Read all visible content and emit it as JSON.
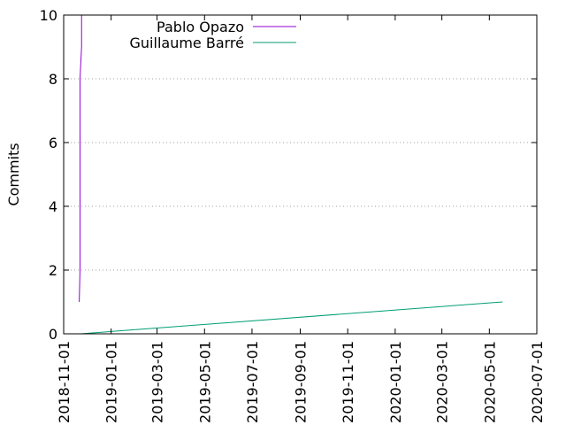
{
  "chart_data": {
    "type": "line",
    "title": "",
    "xlabel": "",
    "ylabel": "Commits",
    "x_type": "date",
    "xlim": [
      "2018-11-01",
      "2020-07-01"
    ],
    "ylim": [
      0,
      10
    ],
    "x_ticks": [
      "2018-11-01",
      "2019-01-01",
      "2019-03-01",
      "2019-05-01",
      "2019-07-01",
      "2019-09-01",
      "2019-11-01",
      "2020-01-01",
      "2020-03-01",
      "2020-05-01",
      "2020-07-01"
    ],
    "y_ticks": [
      0,
      2,
      4,
      6,
      8,
      10
    ],
    "grid": "horizontal dotted",
    "legend_position": "top-left",
    "series": [
      {
        "name": "Pablo Opazo",
        "color": "#9400d3",
        "points": [
          [
            "2018-11-21",
            1
          ],
          [
            "2018-11-22",
            2
          ],
          [
            "2018-11-22",
            8
          ],
          [
            "2018-11-23",
            8.5
          ],
          [
            "2018-11-24",
            9
          ],
          [
            "2018-11-24",
            10
          ],
          [
            "2018-11-25",
            11
          ]
        ]
      },
      {
        "name": "Guillaume Barré",
        "color": "#009e73",
        "points": [
          [
            "2018-11-23",
            0
          ],
          [
            "2020-05-18",
            1
          ]
        ]
      }
    ]
  }
}
